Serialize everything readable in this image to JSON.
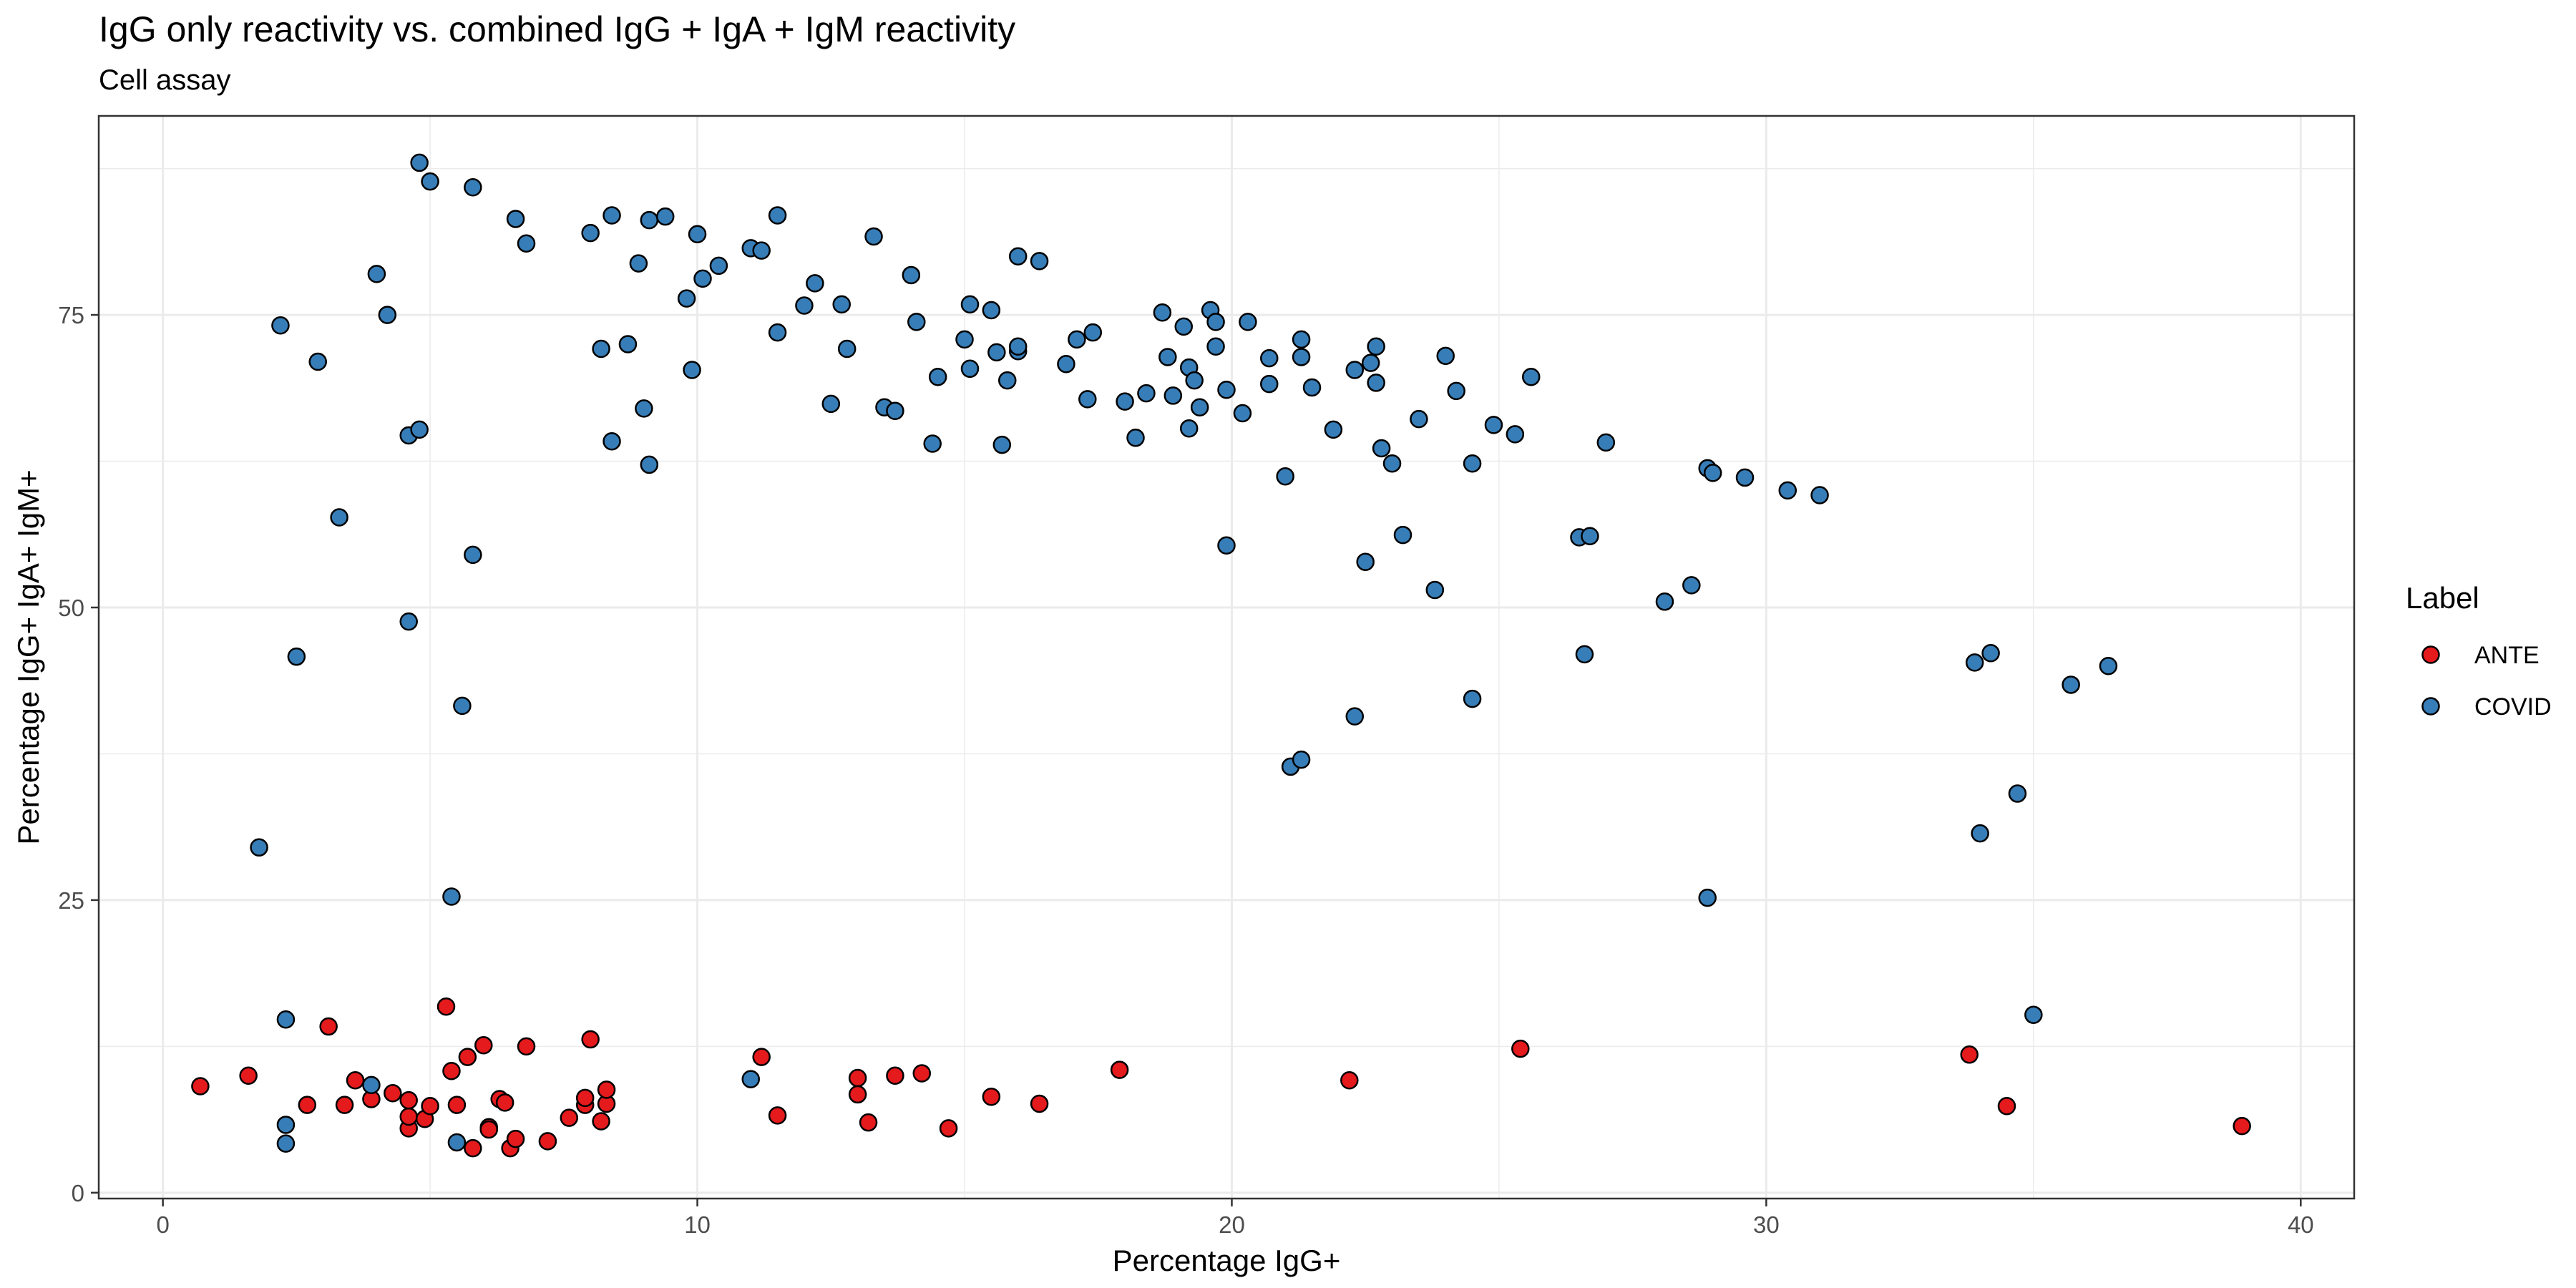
{
  "chart_data": {
    "type": "scatter",
    "title": "IgG only reactivity vs. combined IgG + IgA + IgM reactivity",
    "subtitle": "Cell assay",
    "xlabel": "Percentage IgG+",
    "ylabel": "Percentage IgG+ IgA+ IgM+",
    "xlim": [
      -1.2,
      41.0
    ],
    "ylim": [
      -0.5,
      92.0
    ],
    "x_ticks": [
      0,
      10,
      20,
      30,
      40
    ],
    "y_ticks": [
      0,
      25,
      50,
      75
    ],
    "grid": true,
    "legend": {
      "title": "Label",
      "position": "right"
    },
    "colors": {
      "ANTE": "#e41a1c",
      "COVID": "#377eb8",
      "point_outline": "#000000",
      "grid": "#ebebeb",
      "panel_border": "#333333"
    },
    "series": [
      {
        "name": "ANTE",
        "points": [
          [
            0.7,
            9.1
          ],
          [
            1.6,
            10.0
          ],
          [
            2.7,
            7.5
          ],
          [
            3.1,
            14.2
          ],
          [
            3.4,
            7.5
          ],
          [
            3.6,
            9.6
          ],
          [
            3.9,
            8.0
          ],
          [
            4.3,
            8.5
          ],
          [
            4.6,
            5.5
          ],
          [
            4.6,
            6.5
          ],
          [
            4.6,
            7.9
          ],
          [
            4.9,
            6.3
          ],
          [
            5.0,
            7.4
          ],
          [
            5.3,
            15.9
          ],
          [
            5.4,
            10.4
          ],
          [
            5.5,
            7.5
          ],
          [
            5.7,
            11.6
          ],
          [
            5.8,
            3.8
          ],
          [
            6.0,
            12.6
          ],
          [
            6.1,
            5.6
          ],
          [
            6.1,
            5.4
          ],
          [
            6.3,
            8.0
          ],
          [
            6.4,
            7.7
          ],
          [
            6.5,
            3.8
          ],
          [
            6.6,
            4.6
          ],
          [
            6.8,
            12.5
          ],
          [
            7.2,
            4.4
          ],
          [
            7.6,
            6.4
          ],
          [
            7.9,
            7.5
          ],
          [
            7.9,
            8.1
          ],
          [
            8.0,
            13.1
          ],
          [
            8.2,
            6.1
          ],
          [
            8.3,
            7.6
          ],
          [
            8.3,
            8.8
          ],
          [
            11.2,
            11.6
          ],
          [
            11.5,
            6.6
          ],
          [
            13.0,
            9.8
          ],
          [
            13.0,
            8.4
          ],
          [
            13.2,
            6.0
          ],
          [
            13.7,
            10.0
          ],
          [
            14.2,
            10.2
          ],
          [
            14.7,
            5.5
          ],
          [
            15.5,
            8.2
          ],
          [
            16.4,
            7.6
          ],
          [
            17.9,
            10.5
          ],
          [
            22.2,
            9.6
          ],
          [
            25.4,
            12.3
          ],
          [
            33.8,
            11.8
          ],
          [
            34.5,
            7.4
          ],
          [
            38.9,
            5.7
          ]
        ]
      },
      {
        "name": "COVID",
        "points": [
          [
            1.8,
            29.5
          ],
          [
            2.2,
            74.1
          ],
          [
            2.3,
            14.8
          ],
          [
            2.3,
            5.8
          ],
          [
            2.3,
            4.2
          ],
          [
            2.5,
            45.8
          ],
          [
            2.9,
            71.0
          ],
          [
            3.3,
            57.7
          ],
          [
            3.9,
            9.2
          ],
          [
            4.0,
            78.5
          ],
          [
            4.2,
            75.0
          ],
          [
            4.6,
            64.7
          ],
          [
            4.6,
            48.8
          ],
          [
            4.8,
            65.2
          ],
          [
            4.8,
            88.0
          ],
          [
            5.0,
            86.4
          ],
          [
            5.4,
            25.3
          ],
          [
            5.5,
            4.3
          ],
          [
            5.6,
            41.6
          ],
          [
            5.8,
            54.5
          ],
          [
            5.8,
            85.9
          ],
          [
            6.6,
            83.2
          ],
          [
            6.8,
            81.1
          ],
          [
            8.0,
            82.0
          ],
          [
            8.2,
            72.1
          ],
          [
            8.4,
            64.2
          ],
          [
            8.4,
            83.5
          ],
          [
            8.7,
            72.5
          ],
          [
            8.9,
            79.4
          ],
          [
            9.0,
            67.0
          ],
          [
            9.1,
            62.2
          ],
          [
            9.1,
            83.1
          ],
          [
            9.4,
            83.4
          ],
          [
            9.8,
            76.4
          ],
          [
            9.9,
            70.3
          ],
          [
            10.1,
            78.1
          ],
          [
            10.0,
            81.9
          ],
          [
            10.4,
            79.2
          ],
          [
            11.0,
            9.7
          ],
          [
            11.0,
            80.7
          ],
          [
            11.2,
            80.5
          ],
          [
            11.5,
            83.5
          ],
          [
            11.5,
            73.5
          ],
          [
            12.0,
            75.8
          ],
          [
            12.2,
            77.7
          ],
          [
            12.5,
            67.4
          ],
          [
            12.7,
            75.9
          ],
          [
            12.8,
            72.1
          ],
          [
            13.3,
            81.7
          ],
          [
            13.5,
            67.1
          ],
          [
            13.7,
            66.8
          ],
          [
            14.0,
            78.4
          ],
          [
            14.1,
            74.4
          ],
          [
            14.4,
            64.0
          ],
          [
            14.5,
            69.7
          ],
          [
            15.0,
            72.9
          ],
          [
            15.1,
            75.9
          ],
          [
            15.1,
            70.4
          ],
          [
            15.5,
            75.4
          ],
          [
            15.6,
            71.8
          ],
          [
            15.7,
            63.9
          ],
          [
            15.8,
            69.4
          ],
          [
            16.0,
            71.9
          ],
          [
            16.0,
            72.3
          ],
          [
            16.0,
            80.0
          ],
          [
            16.4,
            79.6
          ],
          [
            16.9,
            70.8
          ],
          [
            17.1,
            72.9
          ],
          [
            17.3,
            67.8
          ],
          [
            17.4,
            73.5
          ],
          [
            18.0,
            67.6
          ],
          [
            18.2,
            64.5
          ],
          [
            18.4,
            68.3
          ],
          [
            18.7,
            75.2
          ],
          [
            18.8,
            71.4
          ],
          [
            18.9,
            68.1
          ],
          [
            19.1,
            74.0
          ],
          [
            19.2,
            70.5
          ],
          [
            19.2,
            65.3
          ],
          [
            19.3,
            69.4
          ],
          [
            19.4,
            67.1
          ],
          [
            19.6,
            75.4
          ],
          [
            19.7,
            74.4
          ],
          [
            19.7,
            72.3
          ],
          [
            19.9,
            68.6
          ],
          [
            19.9,
            55.3
          ],
          [
            20.2,
            66.6
          ],
          [
            20.3,
            74.4
          ],
          [
            20.7,
            69.1
          ],
          [
            20.7,
            71.3
          ],
          [
            21.0,
            61.2
          ],
          [
            21.1,
            36.4
          ],
          [
            21.3,
            37.0
          ],
          [
            21.3,
            71.4
          ],
          [
            21.3,
            72.9
          ],
          [
            21.5,
            68.8
          ],
          [
            21.9,
            65.2
          ],
          [
            22.3,
            70.3
          ],
          [
            22.3,
            40.7
          ],
          [
            22.5,
            53.9
          ],
          [
            22.6,
            70.9
          ],
          [
            22.7,
            72.3
          ],
          [
            22.7,
            69.2
          ],
          [
            22.8,
            63.6
          ],
          [
            23.0,
            62.3
          ],
          [
            23.2,
            56.2
          ],
          [
            23.5,
            66.1
          ],
          [
            23.8,
            51.5
          ],
          [
            24.0,
            71.5
          ],
          [
            24.2,
            68.5
          ],
          [
            24.5,
            62.3
          ],
          [
            24.5,
            42.2
          ],
          [
            24.9,
            65.6
          ],
          [
            25.3,
            64.8
          ],
          [
            25.6,
            69.7
          ],
          [
            26.5,
            56.0
          ],
          [
            26.6,
            46.0
          ],
          [
            26.7,
            56.1
          ],
          [
            27.0,
            64.1
          ],
          [
            28.1,
            50.5
          ],
          [
            28.6,
            51.9
          ],
          [
            28.9,
            25.2
          ],
          [
            28.9,
            61.9
          ],
          [
            29.0,
            61.5
          ],
          [
            29.6,
            61.1
          ],
          [
            30.4,
            60.0
          ],
          [
            31.0,
            59.6
          ],
          [
            33.9,
            45.3
          ],
          [
            34.0,
            30.7
          ],
          [
            34.2,
            46.1
          ],
          [
            34.7,
            34.1
          ],
          [
            35.0,
            15.2
          ],
          [
            35.7,
            43.4
          ],
          [
            36.4,
            45.0
          ]
        ]
      }
    ]
  }
}
